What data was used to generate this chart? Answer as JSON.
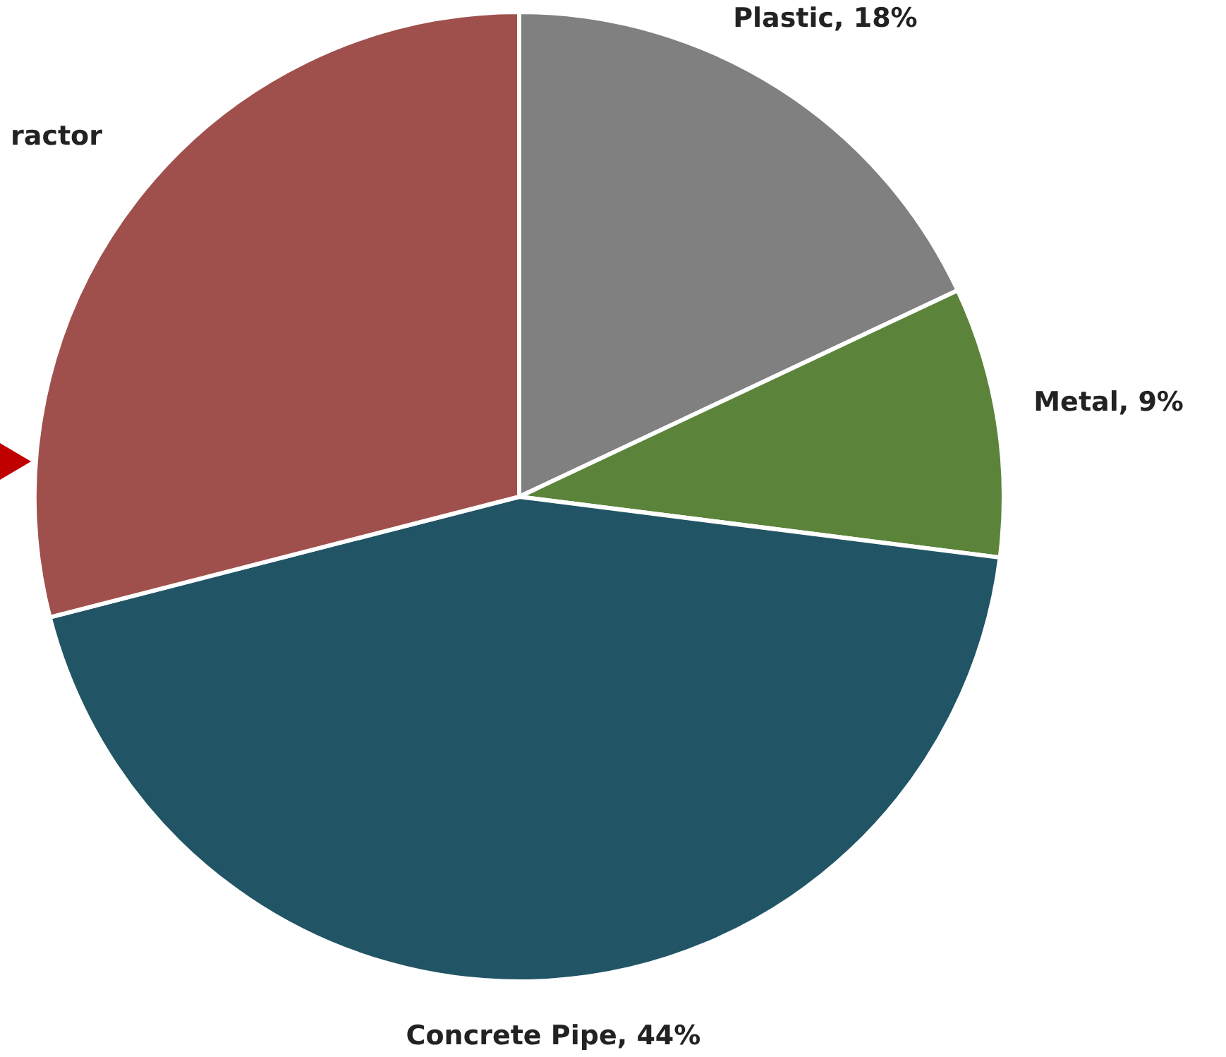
{
  "chart_data": {
    "type": "pie",
    "categories": [
      "Plastic",
      "Metal",
      "Concrete Pipe",
      "ractor"
    ],
    "values": [
      18,
      9,
      44,
      29
    ],
    "colors": [
      "#808080",
      "#5b843a",
      "#215565",
      "#a0504c"
    ],
    "value_labels": [
      ", 18%",
      ", 9%",
      ", 44%",
      null
    ]
  }
}
